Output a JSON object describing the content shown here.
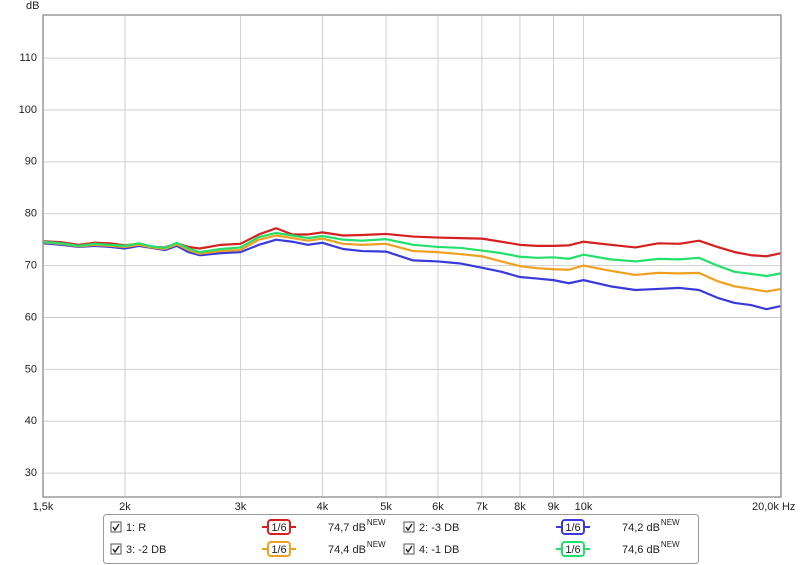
{
  "chart_data": {
    "type": "line",
    "y_label": "dB",
    "log_x": true,
    "grid": true,
    "xlim": [
      1500,
      20000
    ],
    "ylim": [
      25.4,
      118.3
    ],
    "xticks": [
      {
        "value": 1500,
        "label": "1,5k"
      },
      {
        "value": 2000,
        "label": "2k"
      },
      {
        "value": 3000,
        "label": "3k"
      },
      {
        "value": 4000,
        "label": "4k"
      },
      {
        "value": 5000,
        "label": "5k"
      },
      {
        "value": 6000,
        "label": "6k"
      },
      {
        "value": 7000,
        "label": "7k"
      },
      {
        "value": 8000,
        "label": "8k"
      },
      {
        "value": 9000,
        "label": "9k"
      },
      {
        "value": 10000,
        "label": "10k"
      },
      {
        "value": 20000,
        "label": "20,0k Hz"
      }
    ],
    "yticks": [
      30,
      40,
      50,
      60,
      70,
      80,
      90,
      100,
      110
    ],
    "legend_badge": "NEW",
    "x": [
      1500,
      1600,
      1700,
      1800,
      1900,
      2000,
      2100,
      2200,
      2300,
      2400,
      2500,
      2600,
      2800,
      3000,
      3200,
      3400,
      3600,
      3800,
      4000,
      4300,
      4600,
      5000,
      5500,
      6000,
      6500,
      7000,
      7500,
      8000,
      8500,
      9000,
      9500,
      10000,
      11000,
      12000,
      13000,
      14000,
      15000,
      16000,
      17000,
      18000,
      19000,
      20000
    ],
    "series": [
      {
        "name": "1: R",
        "color": "#d42020",
        "smoothing": "1/6",
        "level": "74,7 dB",
        "values": [
          74.7,
          74.5,
          74.0,
          74.4,
          74.3,
          73.9,
          74.2,
          73.6,
          73.5,
          74.3,
          73.6,
          73.3,
          74.0,
          74.2,
          76.0,
          77.2,
          76.0,
          76.0,
          76.4,
          75.8,
          75.9,
          76.1,
          75.6,
          75.4,
          75.3,
          75.2,
          74.6,
          74.0,
          73.8,
          73.8,
          73.9,
          74.6,
          74.0,
          73.5,
          74.3,
          74.2,
          74.8,
          73.6,
          72.6,
          72.0,
          71.8,
          72.4
        ]
      },
      {
        "name": "2: -3 DB",
        "color": "#3a3adc",
        "smoothing": "1/6",
        "level": "74,2 dB",
        "values": [
          74.3,
          74.0,
          73.6,
          73.8,
          73.6,
          73.3,
          73.8,
          73.4,
          73.0,
          73.8,
          72.6,
          72.0,
          72.4,
          72.6,
          74.0,
          75.0,
          74.6,
          74.0,
          74.4,
          73.2,
          72.8,
          72.7,
          71.0,
          70.8,
          70.4,
          69.6,
          68.8,
          67.8,
          67.5,
          67.2,
          66.6,
          67.2,
          66.0,
          65.3,
          65.5,
          65.7,
          65.3,
          63.8,
          62.8,
          62.4,
          61.6,
          62.2
        ]
      },
      {
        "name": "3: -2 DB",
        "color": "#f0a020",
        "smoothing": "1/6",
        "level": "74,4 dB",
        "values": [
          74.5,
          74.2,
          73.7,
          74.0,
          73.8,
          73.6,
          74.0,
          73.5,
          73.2,
          74.1,
          73.0,
          72.3,
          72.8,
          73.0,
          75.0,
          75.8,
          75.3,
          74.8,
          75.2,
          74.2,
          74.0,
          74.2,
          72.8,
          72.6,
          72.2,
          71.8,
          70.8,
          69.9,
          69.5,
          69.3,
          69.2,
          70.0,
          69.0,
          68.2,
          68.6,
          68.5,
          68.6,
          67.0,
          66.0,
          65.5,
          65.0,
          65.5
        ]
      },
      {
        "name": "4: -1 DB",
        "color": "#22e06a",
        "smoothing": "1/6",
        "level": "74,6 dB",
        "values": [
          74.6,
          74.3,
          73.8,
          74.2,
          74.0,
          73.8,
          74.3,
          73.7,
          73.4,
          74.4,
          73.3,
          72.6,
          73.2,
          73.5,
          75.5,
          76.3,
          75.8,
          75.3,
          75.7,
          75.0,
          74.8,
          75.1,
          74.0,
          73.6,
          73.4,
          72.9,
          72.4,
          71.7,
          71.5,
          71.6,
          71.3,
          72.1,
          71.2,
          70.8,
          71.3,
          71.2,
          71.5,
          70.0,
          68.8,
          68.4,
          68.0,
          68.5
        ]
      }
    ]
  }
}
